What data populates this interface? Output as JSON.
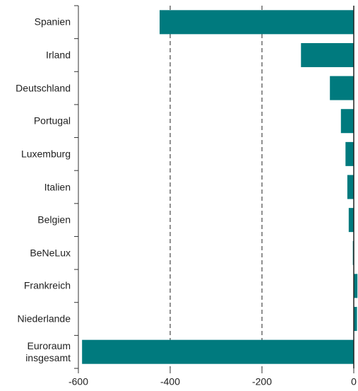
{
  "chart_data": {
    "type": "bar",
    "orientation": "horizontal",
    "categories": [
      "Spanien",
      "Irland",
      "Deutschland",
      "Portugal",
      "Luxemburg",
      "Italien",
      "Belgien",
      "BeNeLux",
      "Frankreich",
      "Niederlande",
      "Euroraum insgesamt"
    ],
    "values": [
      -423,
      -115,
      -52,
      -28,
      -18,
      -14,
      -11,
      -2,
      8,
      7,
      -592
    ],
    "color": "#007a7e",
    "xlim": [
      -600,
      9
    ],
    "xticks": [
      -600,
      -400,
      -200,
      0
    ],
    "grid": true
  }
}
